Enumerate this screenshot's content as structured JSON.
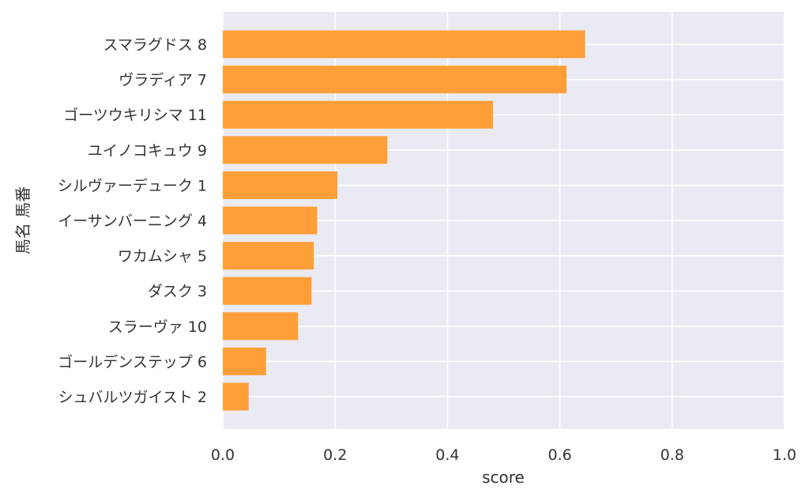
{
  "chart_data": {
    "type": "bar",
    "orientation": "horizontal",
    "xlabel": "score",
    "ylabel": "馬名 馬番",
    "xlim": [
      0,
      1.0
    ],
    "xticks": [
      "0.0",
      "0.2",
      "0.4",
      "0.6",
      "0.8",
      "1.0"
    ],
    "grid": true,
    "bar_color": "#ff9a2e",
    "background_color": "#eaeaf2",
    "categories": [
      "スマラグドス 8",
      "ヴラディア 7",
      "ゴーツウキリシマ 11",
      "ユイノコキュウ 9",
      "シルヴァーデューク 1",
      "イーサンバーニング 4",
      "ワカムシャ 5",
      "ダスク 3",
      "スラーヴァ 10",
      "ゴールデンステップ 6",
      "シュバルツガイスト 2"
    ],
    "values": [
      0.645,
      0.612,
      0.481,
      0.293,
      0.204,
      0.168,
      0.162,
      0.158,
      0.134,
      0.077,
      0.046
    ]
  }
}
